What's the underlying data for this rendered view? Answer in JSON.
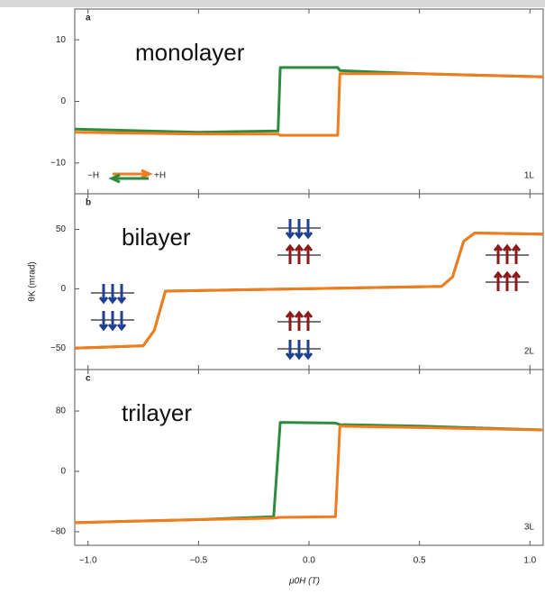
{
  "chart_data": [
    {
      "type": "line",
      "panel_label": "a",
      "annotation": "monolayer",
      "layer_label": "1L",
      "x": [
        -1.06,
        -0.5,
        -0.14,
        -0.13,
        0.13,
        0.14,
        0.5,
        1.06
      ],
      "series": [
        {
          "name": "−H",
          "color": "#f07c1e",
          "values": [
            -5,
            -5.3,
            -5.3,
            -5.5,
            -5.5,
            4.5,
            4.5,
            4
          ]
        },
        {
          "name": "+H",
          "color": "#2e8b3e",
          "values": [
            -4.5,
            -5,
            -4.8,
            5.5,
            5.5,
            5,
            4.5,
            4
          ]
        }
      ],
      "xlim": [
        -1.06,
        1.06
      ],
      "ylim": [
        -15,
        15
      ],
      "yticks": [
        10,
        0,
        {
          "value": -10,
          "label": "−10"
        }
      ]
    },
    {
      "type": "line",
      "panel_label": "b",
      "annotation": "bilayer",
      "layer_label": "2L",
      "ylabel": "θK (mrad)",
      "x": [
        -1.06,
        -0.75,
        -0.7,
        -0.65,
        0.6,
        0.65,
        0.7,
        0.75,
        1.06
      ],
      "series": [
        {
          "color": "#f07c1e",
          "values": [
            -50,
            -48,
            -35,
            -2,
            2,
            10,
            40,
            47,
            46
          ]
        },
        {
          "color": "#2e8b3e",
          "values": [
            -50,
            -48,
            -35,
            -2,
            2,
            10,
            40,
            47,
            46
          ]
        }
      ],
      "xlim": [
        -1.06,
        1.06
      ],
      "ylim": [
        -68,
        80
      ],
      "yticks": [
        50,
        0,
        {
          "value": -50,
          "label": "−50"
        }
      ]
    },
    {
      "type": "line",
      "panel_label": "c",
      "annotation": "trilayer",
      "layer_label": "3L",
      "xlabel": "μ0H (T)",
      "x": [
        -1.06,
        -0.5,
        -0.16,
        -0.13,
        0.12,
        0.14,
        0.5,
        1.06
      ],
      "series": [
        {
          "color": "#f07c1e",
          "values": [
            -68,
            -64,
            -62,
            -61,
            -60,
            60,
            58,
            55
          ]
        },
        {
          "color": "#2e8b3e",
          "values": [
            -68,
            -64,
            -60,
            65,
            64,
            62,
            60,
            55
          ]
        }
      ],
      "xlim": [
        -1.06,
        1.06
      ],
      "ylim": [
        -98,
        135
      ],
      "yticks": [
        80,
        0,
        {
          "value": -80,
          "label": "−80"
        }
      ],
      "xticks": [
        {
          "value": -1,
          "label": "−1.0"
        },
        {
          "value": -0.5,
          "label": "−0.5"
        },
        {
          "value": 0,
          "label": "0.0"
        },
        0.5,
        {
          "value": 1,
          "label": "1.0"
        }
      ]
    }
  ]
}
